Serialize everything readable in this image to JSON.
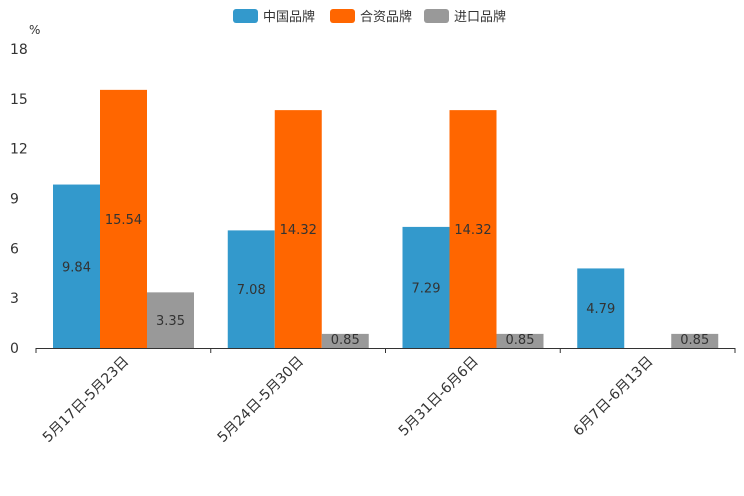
{
  "chart_data": {
    "type": "bar",
    "unit": "%",
    "categories": [
      "5月17日-5月23日",
      "5月24日-5月30日",
      "5月31日-6月6日",
      "6月7日-6月13日"
    ],
    "series": [
      {
        "name": "中国品牌",
        "color": "#3399cc",
        "values": [
          9.84,
          7.08,
          7.29,
          4.79
        ]
      },
      {
        "name": "合资品牌",
        "color": "#ff6600",
        "values": [
          15.54,
          14.32,
          14.32,
          null
        ]
      },
      {
        "name": "进口品牌",
        "color": "#999999",
        "values": [
          3.35,
          0.85,
          0.85,
          0.85
        ]
      }
    ],
    "value_labels": [
      [
        "9.84",
        "7.08",
        "7.29",
        "4.79"
      ],
      [
        "15.54",
        "14.32",
        "14.32",
        ""
      ],
      [
        "3.35",
        "0.85",
        "0.85",
        "0.85"
      ]
    ],
    "yticks": [
      "0",
      "3",
      "6",
      "9",
      "12",
      "15",
      "18"
    ],
    "ylim": [
      0,
      18
    ],
    "legend_position": "top-center",
    "grid": false
  }
}
